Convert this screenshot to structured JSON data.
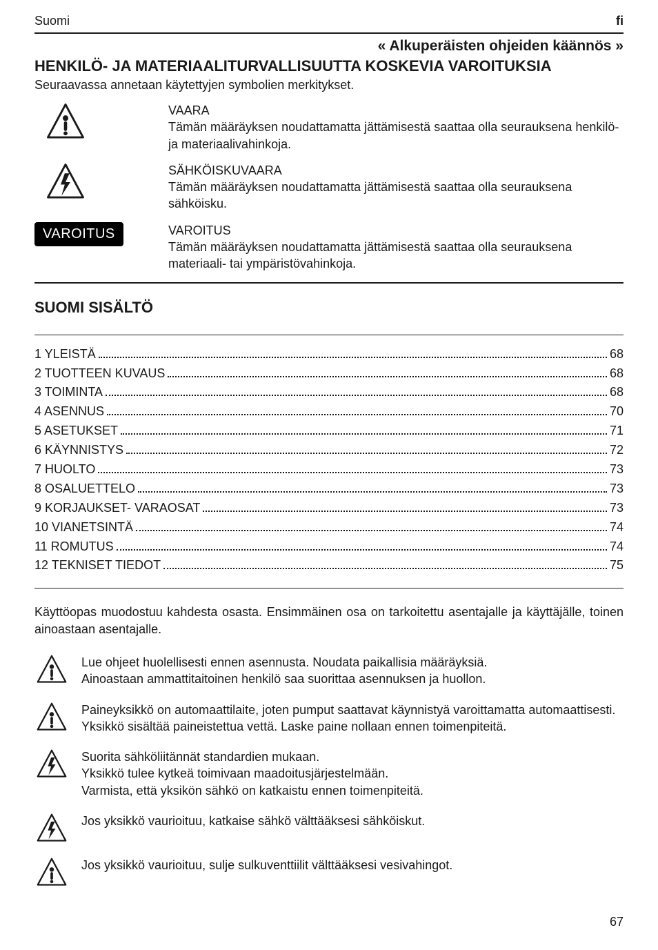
{
  "header": {
    "language_name": "Suomi",
    "language_code": "fi",
    "translation_note": "« Alkuperäisten ohjeiden käännös »",
    "main_heading": "HENKILÖ- JA MATERIAALITURVALLISUUTTA KOSKEVIA VAROITUKSIA",
    "intro": "Seuraavassa annetaan käytettyjen symbolien merkitykset."
  },
  "warnings": [
    {
      "symbol": "danger",
      "title": "VAARA",
      "body": "Tämän määräyksen noudattamatta jättämisestä saattaa olla seurauksena henkilö- ja materiaalivahinkoja."
    },
    {
      "symbol": "shock",
      "title": "SÄHKÖISKUVAARA",
      "body": "Tämän määräyksen noudattamatta jättämisestä saattaa olla seurauksena sähköisku."
    },
    {
      "symbol": "pill",
      "pill_label": "VAROITUS",
      "title": "VAROITUS",
      "body": "Tämän määräyksen noudattamatta jättämisestä saattaa olla seurauksena materiaali- tai ympäristövahinkoja."
    }
  ],
  "toc": {
    "heading": "SUOMI SISÄLTÖ",
    "items": [
      {
        "label": "1 YLEISTÄ",
        "page": "68"
      },
      {
        "label": "2 TUOTTEEN KUVAUS",
        "page": "68"
      },
      {
        "label": "3 TOIMINTA",
        "page": "68"
      },
      {
        "label": "4 ASENNUS",
        "page": "70"
      },
      {
        "label": "5 ASETUKSET",
        "page": "71"
      },
      {
        "label": "6 KÄYNNISTYS",
        "page": "72"
      },
      {
        "label": "7 HUOLTO",
        "page": "73"
      },
      {
        "label": "8 OSALUETTELO",
        "page": "73"
      },
      {
        "label": "9  KORJAUKSET- VARAOSAT",
        "page": "73"
      },
      {
        "label": "10 VIANETSINTÄ",
        "page": "74"
      },
      {
        "label": "11 ROMUTUS",
        "page": "74"
      },
      {
        "label": "12 TEKNISET TIEDOT",
        "page": "75"
      }
    ]
  },
  "body_paragraph": "Käyttöopas muodostuu kahdesta osasta. Ensimmäinen osa on tarkoitettu asentajalle ja käyttäjälle, toinen ainoastaan asentajalle.",
  "notes": [
    {
      "symbol": "danger",
      "text": "Lue ohjeet huolellisesti ennen asennusta. Noudata paikallisia määräyksiä.\nAinoastaan ammattitaitoinen henkilö saa suorittaa asennuksen ja huollon."
    },
    {
      "symbol": "danger",
      "text": "Paineyksikkö on automaattilaite, joten pumput saattavat käynnistyä varoittamatta automaattisesti. Yksikkö sisältää paineistettua vettä. Laske paine nollaan ennen toimenpiteitä."
    },
    {
      "symbol": "shock",
      "text": "Suorita sähköliitännät standardien mukaan.\nYksikkö tulee kytkeä toimivaan maadoitusjärjestelmään.\nVarmista, että yksikön sähkö on katkaistu ennen toimenpiteitä."
    },
    {
      "symbol": "shock",
      "text": "Jos yksikkö vaurioituu, katkaise sähkö välttääksesi sähköiskut."
    },
    {
      "symbol": "danger",
      "text": "Jos yksikkö vaurioituu, sulje sulkuventtiilit välttääksesi vesivahingot."
    }
  ],
  "page_number": "67",
  "colors": {
    "text": "#1a1a1a",
    "background": "#ffffff",
    "pill_bg": "#000000",
    "pill_fg": "#ffffff"
  }
}
